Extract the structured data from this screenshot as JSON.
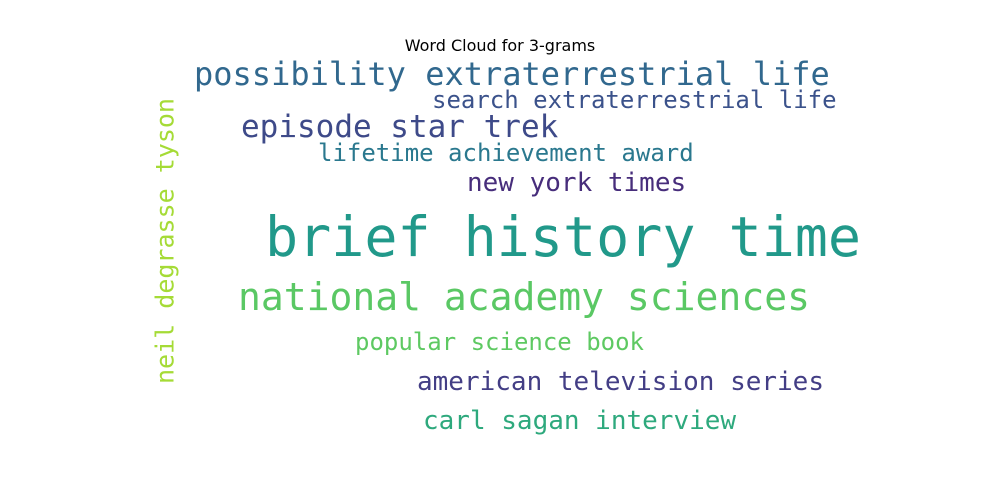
{
  "chart_data": {
    "type": "wordcloud",
    "title": "Word Cloud for 3-grams",
    "words": [
      {
        "text": "brief history time",
        "weight": 1.0,
        "color": "#21998a"
      },
      {
        "text": "national academy sciences",
        "weight": 0.72,
        "color": "#5ac864"
      },
      {
        "text": "possibility extraterrestrial life",
        "weight": 0.6,
        "color": "#31688e"
      },
      {
        "text": "episode star trek",
        "weight": 0.55,
        "color": "#3e4a89"
      },
      {
        "text": "neil degrasse tyson",
        "weight": 0.5,
        "color": "#a5db36",
        "orientation": "vertical"
      },
      {
        "text": "american television series",
        "weight": 0.45,
        "color": "#433e85"
      },
      {
        "text": "new york times",
        "weight": 0.45,
        "color": "#472d7b"
      },
      {
        "text": "carl sagan interview",
        "weight": 0.45,
        "color": "#2ea97d"
      },
      {
        "text": "search extraterrestrial life",
        "weight": 0.42,
        "color": "#3b528b"
      },
      {
        "text": "lifetime achievement award",
        "weight": 0.42,
        "color": "#2a788e"
      },
      {
        "text": "popular science book",
        "weight": 0.42,
        "color": "#5ec962"
      }
    ]
  }
}
